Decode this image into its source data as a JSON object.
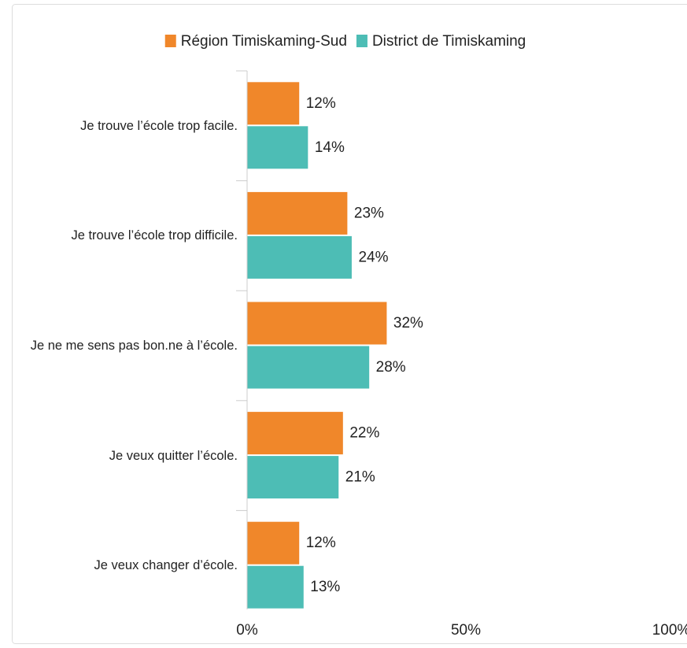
{
  "chart_data": {
    "type": "bar",
    "orientation": "horizontal",
    "categories": [
      "Je trouve l’école trop facile.",
      "Je trouve l’école trop difficile.",
      "Je ne me sens pas bon.ne à l’école.",
      "Je veux quitter l’école.",
      "Je veux changer d’école."
    ],
    "series": [
      {
        "name": "Région Timiskaming-Sud",
        "color": "#f0872a",
        "values": [
          12,
          23,
          32,
          22,
          12
        ],
        "value_labels": [
          "12%",
          "23%",
          "32%",
          "22%",
          "12%"
        ]
      },
      {
        "name": "District de Timiskaming",
        "color": "#4dbdb5",
        "values": [
          14,
          24,
          28,
          21,
          13
        ],
        "value_labels": [
          "14%",
          "24%",
          "28%",
          "21%",
          "13%"
        ]
      }
    ],
    "xlim": [
      0,
      100
    ],
    "xticks": [
      {
        "value": 0,
        "label": "0%"
      },
      {
        "value": 50,
        "label": "50%"
      },
      {
        "value": 100,
        "label": "100%"
      }
    ],
    "legend": "top"
  }
}
